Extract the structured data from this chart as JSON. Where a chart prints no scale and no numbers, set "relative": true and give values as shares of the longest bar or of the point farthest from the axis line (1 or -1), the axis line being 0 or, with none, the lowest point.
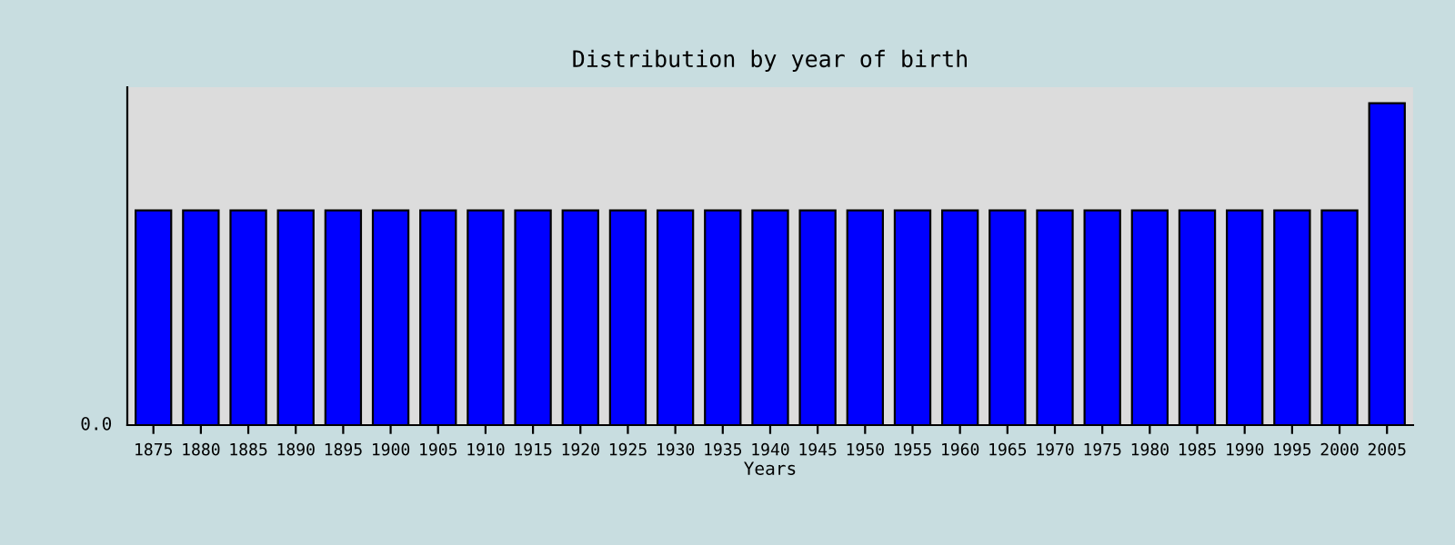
{
  "chart_data": {
    "type": "bar",
    "title": "Distribution by year of birth",
    "xlabel": "Years",
    "categories": [
      "1875",
      "1880",
      "1885",
      "1890",
      "1895",
      "1900",
      "1905",
      "1910",
      "1915",
      "1920",
      "1925",
      "1930",
      "1935",
      "1940",
      "1945",
      "1950",
      "1955",
      "1960",
      "1965",
      "1970",
      "1975",
      "1980",
      "1985",
      "1990",
      "1995",
      "2000",
      "2005"
    ],
    "values": [
      0.667,
      0.667,
      0.667,
      0.667,
      0.667,
      0.667,
      0.667,
      0.667,
      0.667,
      0.667,
      0.667,
      0.667,
      0.667,
      0.667,
      0.667,
      0.667,
      0.667,
      0.667,
      0.667,
      0.667,
      0.667,
      0.667,
      0.667,
      0.667,
      0.667,
      0.667,
      1
    ],
    "color": "#0000ff",
    "relative": true,
    "grid": false,
    "legend": false,
    "annotations": [
      "0.0"
    ]
  }
}
